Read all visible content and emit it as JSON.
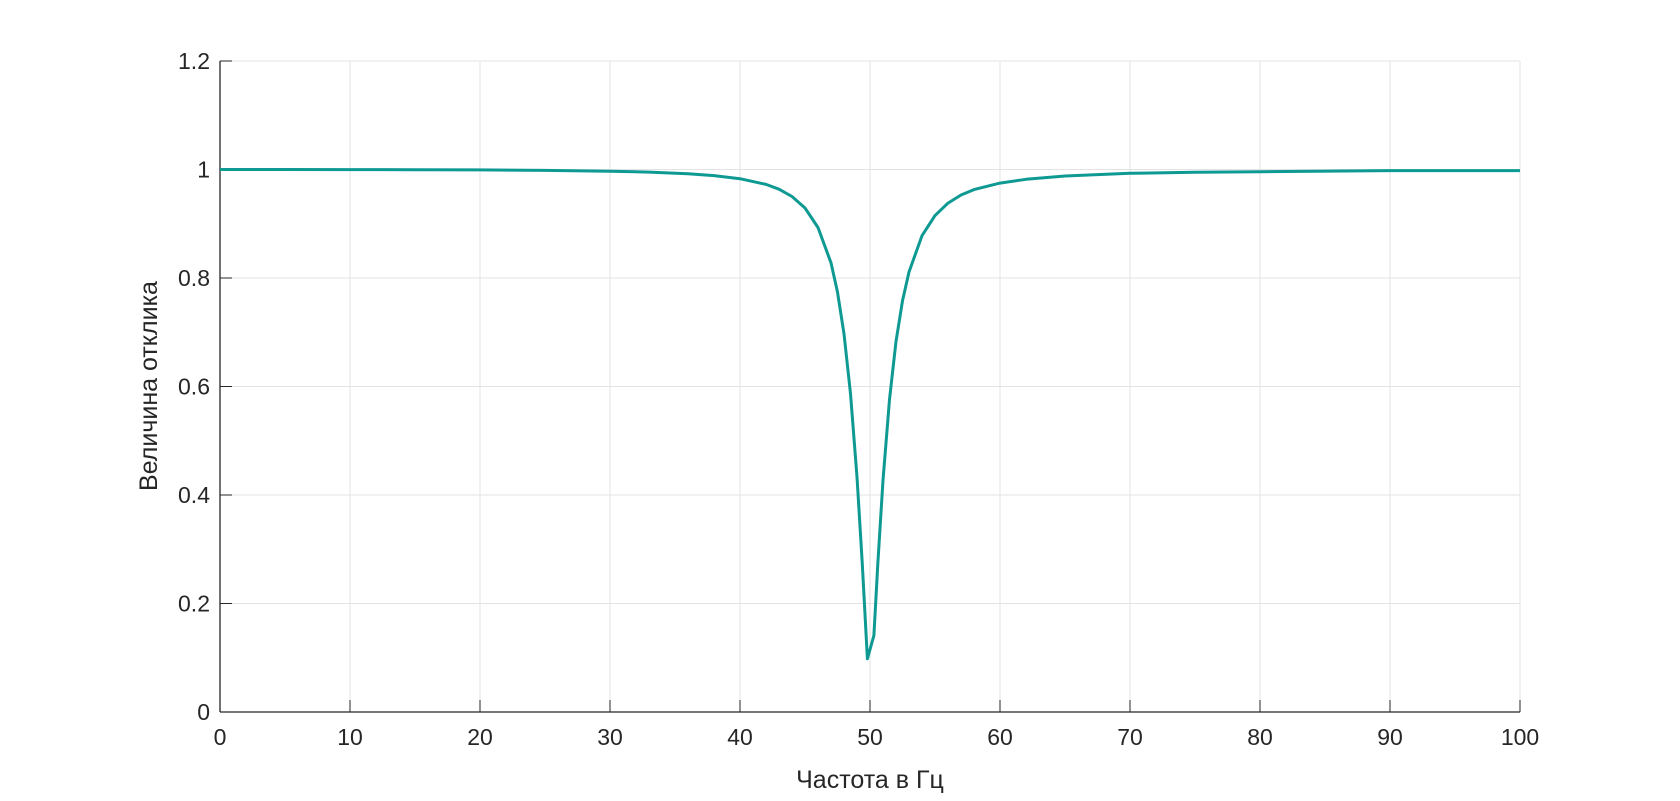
{
  "chart_data": {
    "type": "line",
    "title": "",
    "xlabel": "Частота в Гц",
    "ylabel": "Величина отклика",
    "xlim": [
      0,
      100
    ],
    "ylim": [
      0,
      1.2
    ],
    "xticks": [
      "0",
      "10",
      "20",
      "30",
      "40",
      "50",
      "60",
      "70",
      "80",
      "90",
      "100"
    ],
    "yticks": [
      "0",
      "0.2",
      "0.4",
      "0.6",
      "0.8",
      "1",
      "1.2"
    ],
    "grid": true,
    "line_color": "#0e9a92",
    "series": [
      {
        "x": [
          0,
          5,
          10,
          15,
          20,
          25,
          30,
          33,
          36,
          38,
          40,
          42,
          43,
          44,
          45,
          46,
          47,
          47.5,
          48,
          48.5,
          49,
          49.4,
          49.8,
          50.3,
          50.6,
          51,
          51.5,
          52,
          52.5,
          53,
          54,
          55,
          56,
          57,
          58,
          60,
          62,
          65,
          70,
          75,
          80,
          90,
          100
        ],
        "y": [
          1.0,
          1.0,
          0.9999,
          0.9996,
          0.9992,
          0.9984,
          0.9969,
          0.9952,
          0.9922,
          0.9888,
          0.983,
          0.9725,
          0.9636,
          0.9503,
          0.929,
          0.893,
          0.828,
          0.774,
          0.697,
          0.587,
          0.433,
          0.276,
          0.098,
          0.141,
          0.273,
          0.427,
          0.576,
          0.683,
          0.758,
          0.811,
          0.878,
          0.915,
          0.938,
          0.953,
          0.963,
          0.975,
          0.982,
          0.988,
          0.993,
          0.995,
          0.996,
          0.998,
          0.998
        ]
      }
    ]
  }
}
